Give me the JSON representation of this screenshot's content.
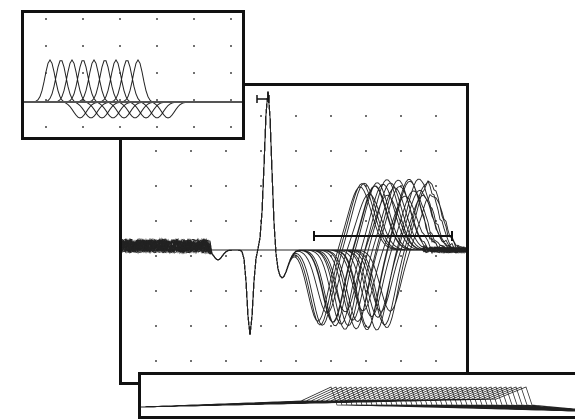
{
  "figure": {
    "description_color_trace": "#222222",
    "description_color_baseline": "#6e6e6e",
    "description_color_background": "#ffffff"
  },
  "main_panel": {
    "trace_count": 24,
    "stimulus_marker": "cursor-bar-icon",
    "range_marker": "range-bar-icon"
  },
  "top_panel": {
    "trace_count": 9
  },
  "bottom_panel": {
    "trace_count": 40
  }
}
